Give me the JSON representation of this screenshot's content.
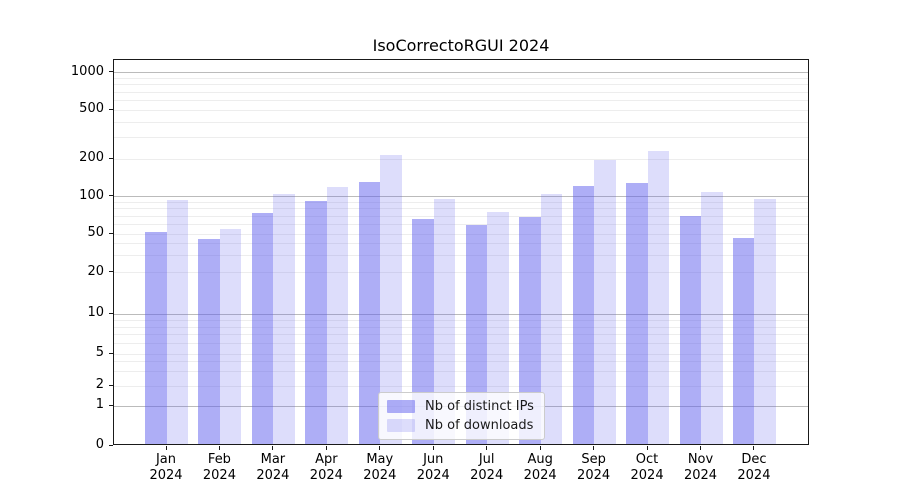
{
  "title": "IsoCorrectoRGUI 2024",
  "chart_data": {
    "type": "bar",
    "title": "IsoCorrectoRGUI 2024",
    "categories": [
      "Jan 2024",
      "Feb 2024",
      "Mar 2024",
      "Apr 2024",
      "May 2024",
      "Jun 2024",
      "Jul 2024",
      "Aug 2024",
      "Sep 2024",
      "Oct 2024",
      "Nov 2024",
      "Dec 2024"
    ],
    "series": [
      {
        "name": "Nb of distinct IPs",
        "color": "rgba(93,93,237,0.5)",
        "values": [
          50,
          43,
          71,
          90,
          128,
          64,
          57,
          66,
          117,
          124,
          68,
          44
        ]
      },
      {
        "name": "Nb of downloads",
        "color": "rgba(93,93,237,0.21)",
        "values": [
          91,
          53,
          102,
          116,
          210,
          93,
          73,
          102,
          190,
          225,
          106,
          92
        ]
      }
    ],
    "xlabel": "",
    "ylabel": "",
    "yscale": "log-like (linear 0-1, logarithmic above 1)",
    "ylim": [
      0,
      1150
    ],
    "y_ticks": [
      0,
      1,
      2,
      5,
      10,
      20,
      50,
      100,
      200,
      500,
      1000
    ],
    "grid": {
      "major_lines": [
        1,
        10,
        100,
        1000
      ],
      "minor_lines": [
        2,
        3,
        4,
        5,
        6,
        7,
        8,
        9,
        20,
        30,
        40,
        50,
        60,
        70,
        80,
        90,
        200,
        300,
        400,
        500,
        600,
        700,
        800,
        900
      ]
    },
    "legend_position": "lower center"
  },
  "colors": {
    "axis": "#1a1a1a",
    "major_grid": "#bbbbbb",
    "minor_grid": "#ededed",
    "background": "#ffffff"
  }
}
